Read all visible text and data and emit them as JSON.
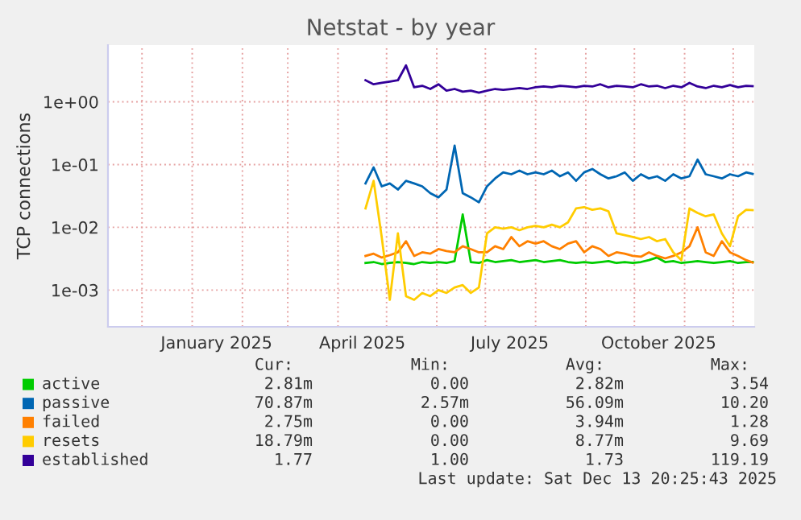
{
  "chart_data": {
    "type": "line",
    "title": "Netstat - by year",
    "ylabel": "TCP connections",
    "x": [
      "2025-04-18",
      "2025-04-23",
      "2025-04-28",
      "2025-05-03",
      "2025-05-08",
      "2025-05-13",
      "2025-05-18",
      "2025-05-23",
      "2025-05-28",
      "2025-06-02",
      "2025-06-07",
      "2025-06-12",
      "2025-06-17",
      "2025-06-22",
      "2025-06-27",
      "2025-07-02",
      "2025-07-07",
      "2025-07-12",
      "2025-07-17",
      "2025-07-22",
      "2025-07-27",
      "2025-08-01",
      "2025-08-06",
      "2025-08-11",
      "2025-08-16",
      "2025-08-21",
      "2025-08-26",
      "2025-08-31",
      "2025-09-05",
      "2025-09-10",
      "2025-09-15",
      "2025-09-20",
      "2025-09-25",
      "2025-09-30",
      "2025-10-05",
      "2025-10-10",
      "2025-10-15",
      "2025-10-20",
      "2025-10-25",
      "2025-10-30",
      "2025-11-04",
      "2025-11-09",
      "2025-11-14",
      "2025-11-19",
      "2025-11-24",
      "2025-11-29",
      "2025-12-04",
      "2025-12-09",
      "2025-12-13"
    ],
    "series": [
      {
        "name": "active",
        "color": "#00cc00",
        "values": [
          0.0027,
          0.0028,
          0.0026,
          0.0027,
          0.0028,
          0.0027,
          0.0026,
          0.0028,
          0.0027,
          0.0028,
          0.0027,
          0.0029,
          0.016,
          0.0028,
          0.0027,
          0.003,
          0.0028,
          0.0029,
          0.003,
          0.0028,
          0.0029,
          0.003,
          0.0028,
          0.0029,
          0.003,
          0.0028,
          0.0027,
          0.0028,
          0.0027,
          0.0028,
          0.0029,
          0.0027,
          0.0028,
          0.0027,
          0.0028,
          0.003,
          0.0033,
          0.0028,
          0.0029,
          0.0027,
          0.0028,
          0.0029,
          0.0028,
          0.0027,
          0.0028,
          0.0029,
          0.0027,
          0.0028,
          0.0028
        ]
      },
      {
        "name": "passive",
        "color": "#0066b3",
        "values": [
          0.05,
          0.09,
          0.045,
          0.05,
          0.04,
          0.055,
          0.05,
          0.045,
          0.035,
          0.03,
          0.04,
          0.2,
          0.035,
          0.03,
          0.025,
          0.045,
          0.06,
          0.075,
          0.07,
          0.08,
          0.07,
          0.075,
          0.07,
          0.08,
          0.065,
          0.075,
          0.055,
          0.075,
          0.085,
          0.07,
          0.06,
          0.065,
          0.075,
          0.055,
          0.07,
          0.06,
          0.065,
          0.055,
          0.07,
          0.06,
          0.065,
          0.12,
          0.07,
          0.065,
          0.06,
          0.07,
          0.065,
          0.075,
          0.071
        ]
      },
      {
        "name": "failed",
        "color": "#ff8000",
        "values": [
          0.0035,
          0.0038,
          0.0033,
          0.0036,
          0.004,
          0.006,
          0.0035,
          0.004,
          0.0038,
          0.0045,
          0.0042,
          0.004,
          0.005,
          0.0045,
          0.004,
          0.004,
          0.005,
          0.0045,
          0.007,
          0.005,
          0.006,
          0.0055,
          0.006,
          0.005,
          0.0045,
          0.0055,
          0.006,
          0.004,
          0.005,
          0.0045,
          0.0035,
          0.004,
          0.0038,
          0.0035,
          0.0034,
          0.004,
          0.0035,
          0.0032,
          0.0035,
          0.004,
          0.005,
          0.01,
          0.004,
          0.0035,
          0.006,
          0.004,
          0.0035,
          0.003,
          0.00275
        ]
      },
      {
        "name": "resets",
        "color": "#ffcc00",
        "values": [
          0.02,
          0.055,
          0.007,
          0.0007,
          0.008,
          0.0008,
          0.0007,
          0.0009,
          0.0008,
          0.001,
          0.0009,
          0.0011,
          0.0012,
          0.0009,
          0.0011,
          0.008,
          0.01,
          0.0095,
          0.01,
          0.009,
          0.01,
          0.0105,
          0.01,
          0.011,
          0.01,
          0.012,
          0.02,
          0.021,
          0.019,
          0.02,
          0.018,
          0.008,
          0.0075,
          0.007,
          0.0065,
          0.007,
          0.006,
          0.0065,
          0.004,
          0.003,
          0.02,
          0.017,
          0.015,
          0.016,
          0.008,
          0.005,
          0.015,
          0.019,
          0.0188
        ]
      },
      {
        "name": "established",
        "color": "#330099",
        "values": [
          2.2,
          1.9,
          2.0,
          2.1,
          2.2,
          3.8,
          1.7,
          1.8,
          1.6,
          1.9,
          1.5,
          1.6,
          1.45,
          1.5,
          1.4,
          1.5,
          1.6,
          1.55,
          1.6,
          1.65,
          1.6,
          1.7,
          1.75,
          1.7,
          1.8,
          1.75,
          1.7,
          1.8,
          1.75,
          1.9,
          1.7,
          1.8,
          1.75,
          1.7,
          1.9,
          1.75,
          1.8,
          1.65,
          1.8,
          1.7,
          2.0,
          1.75,
          1.65,
          1.8,
          1.7,
          1.85,
          1.7,
          1.8,
          1.77
        ]
      }
    ],
    "log": "y",
    "ylim": [
      0.00026,
      8
    ],
    "yticks": [
      {
        "value": 0.001,
        "label": "1e-03"
      },
      {
        "value": 0.01,
        "label": "1e-02"
      },
      {
        "value": 0.1,
        "label": "1e-01"
      },
      {
        "value": 1,
        "label": "1e+00"
      }
    ],
    "xlim": [
      "2024-11-10",
      "2025-12-14"
    ],
    "xticks": [
      {
        "value": "2024-12-01",
        "label": null
      },
      {
        "value": "2025-01-01",
        "label": null
      },
      {
        "value": "2025-01-16",
        "label": "January 2025"
      },
      {
        "value": "2025-02-01",
        "label": null
      },
      {
        "value": "2025-03-01",
        "label": null
      },
      {
        "value": "2025-04-01",
        "label": null
      },
      {
        "value": "2025-04-16",
        "label": "April 2025"
      },
      {
        "value": "2025-05-01",
        "label": null
      },
      {
        "value": "2025-06-01",
        "label": null
      },
      {
        "value": "2025-07-01",
        "label": null
      },
      {
        "value": "2025-07-16",
        "label": "July 2025"
      },
      {
        "value": "2025-08-01",
        "label": null
      },
      {
        "value": "2025-09-01",
        "label": null
      },
      {
        "value": "2025-10-01",
        "label": null
      },
      {
        "value": "2025-10-16",
        "label": "October 2025"
      },
      {
        "value": "2025-11-01",
        "label": null
      },
      {
        "value": "2025-12-01",
        "label": null
      }
    ],
    "grid": true,
    "legend": "bottom",
    "marker": "none",
    "line_style": "solid",
    "annotations": [
      "Cur:",
      "Min:",
      "Avg:",
      "Max:",
      "2.81m",
      "0.00",
      "2.82m",
      "3.54",
      "70.87m",
      "2.57m",
      "56.09m",
      "10.20",
      "2.75m",
      "0.00",
      "3.94m",
      "1.28",
      "18.79m",
      "0.00",
      "8.77m",
      "9.69",
      "1.77",
      "1.00",
      "1.73",
      "119.19",
      "Last update: Sat Dec 13 20:25:43 2025"
    ]
  }
}
